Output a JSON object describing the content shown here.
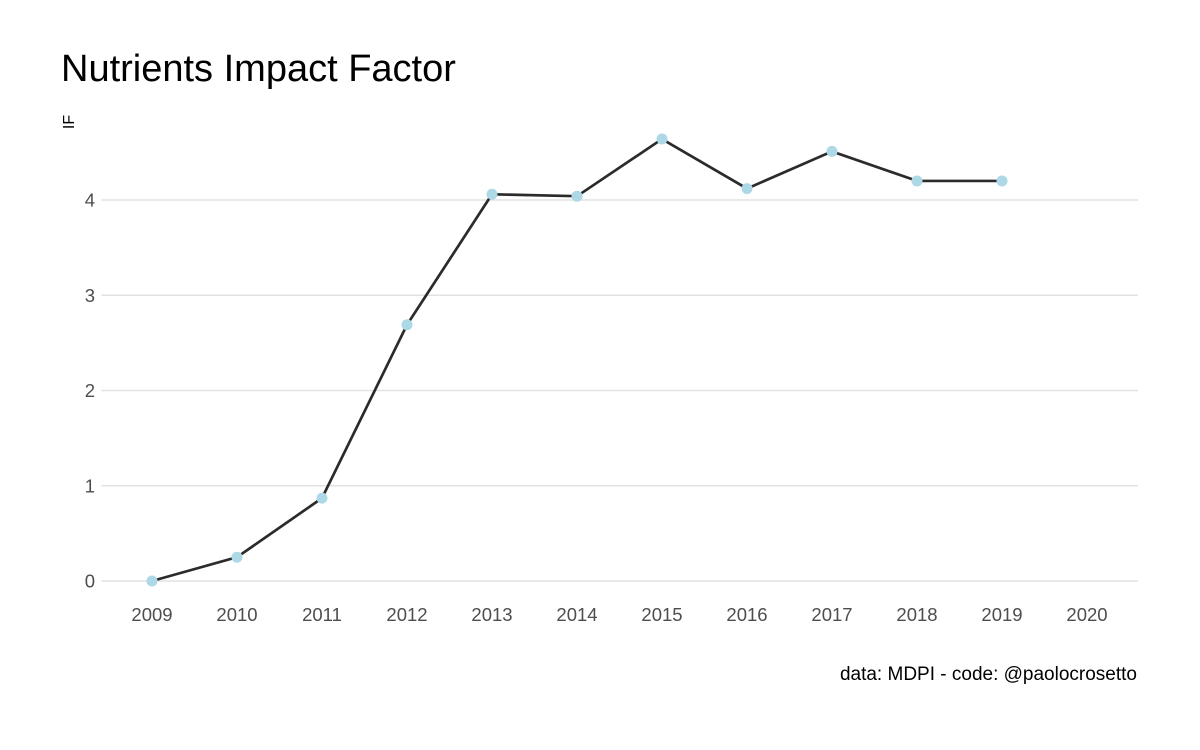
{
  "chart_data": {
    "type": "line",
    "title": "Nutrients Impact Factor",
    "ylabel": "IF",
    "xlabel": "",
    "caption": "data: MDPI - code: @paolocrosetto",
    "x": [
      2009,
      2010,
      2011,
      2012,
      2013,
      2014,
      2015,
      2016,
      2017,
      2018,
      2019
    ],
    "values": [
      0.0,
      0.25,
      0.87,
      2.69,
      4.06,
      4.04,
      4.64,
      4.12,
      4.51,
      4.2,
      4.2
    ],
    "series_name": "Nutrients impact factor",
    "x_ticks": [
      "2009",
      "2010",
      "2011",
      "2012",
      "2013",
      "2014",
      "2015",
      "2016",
      "2017",
      "2018",
      "2019",
      "2020"
    ],
    "y_ticks": [
      "0",
      "1",
      "2",
      "3",
      "4"
    ],
    "xlim": [
      2008.4,
      2020.6
    ],
    "ylim": [
      0,
      4.64
    ],
    "grid": "horizontal-major-only",
    "legend": "none",
    "colors": {
      "line": "#2b2b2b",
      "point": "#add8e6",
      "grid": "#e2e2e2",
      "axis_text": "#4d4d4d",
      "title": "#000000",
      "caption": "#000000",
      "background": "#ffffff"
    }
  }
}
